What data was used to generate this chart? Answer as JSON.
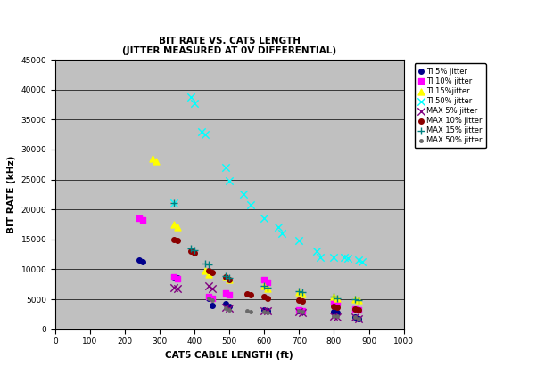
{
  "title_line1": "BIT RATE VS. CAT5 LENGTH",
  "title_line2": "(JITTER MEASURED AT 0V DIFFERENTIAL)",
  "xlabel": "CAT5 CABLE LENGTH (ft)",
  "ylabel": "BIT RATE (kHz)",
  "xlim": [
    0,
    1000
  ],
  "ylim": [
    0,
    45000
  ],
  "xticks": [
    0,
    100,
    200,
    300,
    400,
    500,
    600,
    700,
    800,
    900,
    1000
  ],
  "yticks": [
    0,
    5000,
    10000,
    15000,
    20000,
    25000,
    30000,
    35000,
    40000,
    45000
  ],
  "bg_color": "#c0c0c0",
  "series": [
    {
      "label": "TI 5% jitter",
      "color": "#00008B",
      "marker": "o",
      "markersize": 4,
      "x": [
        240,
        250,
        340,
        350,
        440,
        450,
        490,
        500,
        600,
        610,
        700,
        710,
        800,
        810,
        860,
        870
      ],
      "y": [
        11500,
        11200,
        8600,
        8500,
        5200,
        4000,
        4200,
        3800,
        3200,
        3100,
        3000,
        2900,
        2900,
        2800,
        2000,
        1800
      ]
    },
    {
      "label": "TI 10% jitter",
      "color": "#FF00FF",
      "marker": "s",
      "markersize": 4,
      "x": [
        240,
        250,
        340,
        350,
        440,
        450,
        490,
        500,
        600,
        610,
        700,
        710,
        800,
        810,
        860,
        870
      ],
      "y": [
        18500,
        18200,
        8700,
        8400,
        5400,
        5100,
        6000,
        5700,
        8200,
        7900,
        3200,
        3000,
        4600,
        4400,
        3400,
        3200
      ]
    },
    {
      "label": "TI 15%jitter",
      "color": "#FFFF00",
      "marker": "^",
      "markersize": 5,
      "x": [
        280,
        290,
        340,
        350,
        430,
        440,
        490,
        500,
        600,
        610,
        700,
        710,
        800,
        810,
        860,
        870
      ],
      "y": [
        28500,
        28000,
        17500,
        17000,
        9800,
        9200,
        8700,
        8200,
        7200,
        6800,
        6200,
        5900,
        5500,
        5200,
        5000,
        4800
      ]
    },
    {
      "label": "TI 50% jitter",
      "color": "#00FFFF",
      "marker": "x",
      "markersize": 6,
      "x": [
        340,
        390,
        400,
        420,
        430,
        490,
        500,
        540,
        560,
        600,
        640,
        650,
        700,
        750,
        760,
        800,
        830,
        840,
        870,
        880
      ],
      "y": [
        21000,
        38800,
        37800,
        33000,
        32500,
        27000,
        24800,
        22500,
        20800,
        18500,
        17000,
        16000,
        14800,
        13000,
        12000,
        12000,
        12000,
        11800,
        11500,
        11200
      ]
    },
    {
      "label": "MAX 5% jitter",
      "color": "#800080",
      "marker": "x",
      "markersize": 6,
      "x": [
        340,
        350,
        440,
        450,
        490,
        500,
        600,
        610,
        700,
        710,
        800,
        810,
        860,
        870
      ],
      "y": [
        7000,
        6800,
        7200,
        6800,
        3700,
        3500,
        3100,
        3000,
        2900,
        2800,
        2100,
        2000,
        2000,
        1800
      ]
    },
    {
      "label": "MAX 10% jitter",
      "color": "#8B0000",
      "marker": "o",
      "markersize": 4,
      "x": [
        340,
        350,
        390,
        400,
        440,
        450,
        490,
        500,
        550,
        560,
        600,
        610,
        700,
        710,
        800,
        810,
        860,
        870
      ],
      "y": [
        15000,
        14800,
        13000,
        12800,
        9800,
        9500,
        8700,
        8300,
        5900,
        5700,
        5400,
        5100,
        4900,
        4700,
        3800,
        3600,
        3400,
        3200
      ]
    },
    {
      "label": "MAX 15% jitter",
      "color": "#008080",
      "marker": "+",
      "markersize": 6,
      "x": [
        340,
        390,
        400,
        430,
        440,
        490,
        500,
        600,
        610,
        700,
        710,
        800,
        810,
        860,
        870
      ],
      "y": [
        21000,
        13500,
        13200,
        11000,
        10800,
        8800,
        8500,
        7200,
        6900,
        6400,
        6200,
        5500,
        5200,
        5000,
        4800
      ]
    },
    {
      "label": "MAX 50% jitter",
      "color": "#696969",
      "marker": ".",
      "markersize": 5,
      "x": [
        440,
        450,
        490,
        500,
        550,
        560,
        600,
        610,
        700,
        710,
        800,
        810,
        860,
        870
      ],
      "y": [
        5200,
        4800,
        3500,
        3200,
        3000,
        2900,
        2900,
        2800,
        3000,
        2900,
        2200,
        2100,
        2000,
        1800
      ]
    }
  ]
}
